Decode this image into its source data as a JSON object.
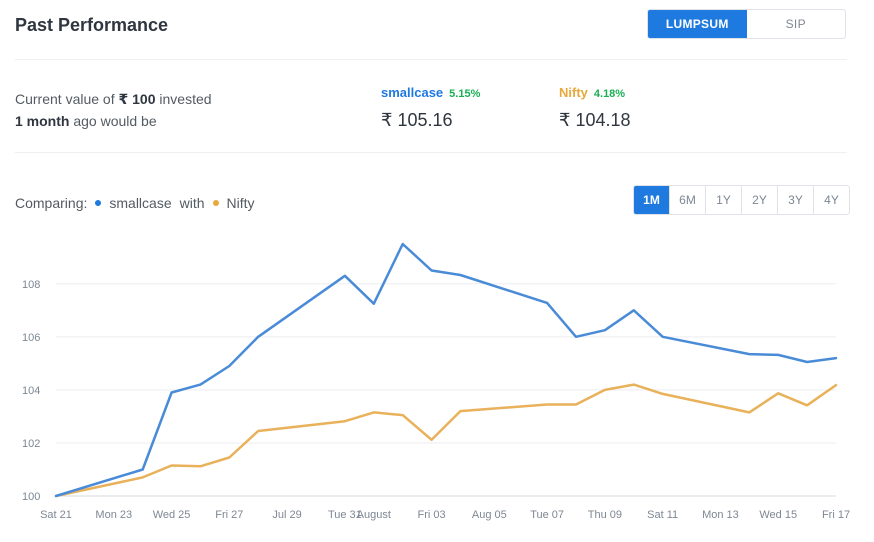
{
  "header": {
    "title": "Past Performance"
  },
  "mode_toggle": {
    "lumpsum": "LUMPSUM",
    "sip": "SIP",
    "active": "LUMPSUM"
  },
  "summary": {
    "line1_prefix": "Current value of ",
    "amount": "₹ 100",
    "line1_suffix": " invested",
    "period": "1 month",
    "line2_suffix": " ago would be"
  },
  "metrics": {
    "smallcase": {
      "name": "smallcase",
      "pct": "5.15%",
      "value": "₹ 105.16",
      "color": "#1f7ae0"
    },
    "nifty": {
      "name": "Nifty",
      "pct": "4.18%",
      "value": "₹ 104.18",
      "color": "#e8a93b"
    }
  },
  "comparing": {
    "label": "Comparing:",
    "series1": "smallcase",
    "with": "with",
    "series2": "Nifty"
  },
  "ranges": {
    "items": [
      "1M",
      "6M",
      "1Y",
      "2Y",
      "3Y",
      "4Y"
    ],
    "active": "1M"
  },
  "chart_data": {
    "type": "line",
    "title": "",
    "xlabel": "",
    "ylabel": "",
    "ylim": [
      100,
      109.5
    ],
    "yticks": [
      100,
      102,
      104,
      106,
      108
    ],
    "grid": true,
    "x_tick_labels": [
      "Sat 21",
      "Mon 23",
      "Wed 25",
      "Fri 27",
      "Jul 29",
      "Tue 31",
      "August",
      "Fri 03",
      "Aug 05",
      "Tue 07",
      "Thu 09",
      "Sat 11",
      "Mon 13",
      "Wed 15",
      "Fri 17"
    ],
    "x_tick_positions": [
      0,
      2,
      4,
      6,
      8,
      10,
      11,
      13,
      15,
      17,
      19,
      21,
      23,
      25,
      27
    ],
    "series": [
      {
        "name": "smallcase",
        "color": "#4a8bd8",
        "x": [
          0,
          3,
          4,
          5,
          6,
          7,
          10,
          11,
          12,
          13,
          14,
          17,
          18,
          19,
          20,
          21,
          24,
          25,
          26,
          27
        ],
        "values": [
          100,
          101,
          103.9,
          104.2,
          104.9,
          106,
          108.3,
          107.25,
          109.5,
          108.5,
          108.33,
          107.28,
          106,
          106.25,
          107,
          106,
          105.35,
          105.32,
          105.05,
          105.2
        ]
      },
      {
        "name": "Nifty",
        "color": "#e8b15a",
        "x": [
          0,
          3,
          4,
          5,
          6,
          7,
          10,
          11,
          12,
          13,
          14,
          17,
          18,
          19,
          20,
          21,
          24,
          25,
          26,
          27
        ],
        "values": [
          100,
          100.7,
          101.15,
          101.12,
          101.45,
          102.45,
          102.82,
          103.15,
          103.05,
          102.12,
          103.2,
          103.45,
          103.45,
          104,
          104.2,
          103.85,
          103.15,
          103.87,
          103.42,
          104.18
        ]
      }
    ]
  }
}
